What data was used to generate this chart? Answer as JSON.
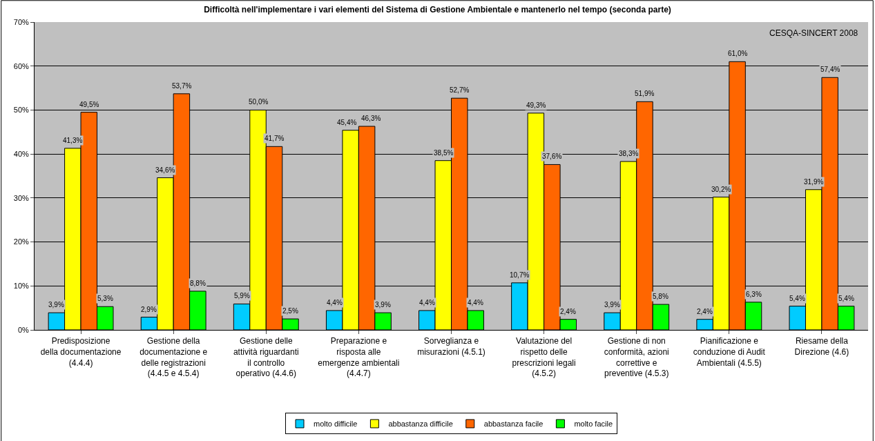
{
  "chart_data": {
    "type": "bar",
    "title": "Difficoltà nell'implementare i vari elementi del Sistema di Gestione Ambientale e mantenerlo nel tempo (seconda parte)",
    "categories": [
      "Predisposizione della documentazione (4.4.4)",
      "Gestione della documentazione e delle registrazioni (4.4.5 e 4.5.4)",
      "Gestione delle attività riguardanti il controllo operativo (4.4.6)",
      "Preparazione e risposta alle emergenze ambientali (4.4.7)",
      "Sorveglianza e misurazioni (4.5.1)",
      "Valutazione del rispetto delle prescrizioni legali (4.5.2)",
      "Gestione di non conformità, azioni correttive e preventive (4.5.3)",
      "Pianificazione e conduzione di Audit Ambientali (4.5.5)",
      "Riesame della Direzione (4.6)"
    ],
    "series": [
      {
        "name": "molto difficile",
        "color": "#00ccff",
        "values": [
          3.9,
          2.9,
          5.9,
          4.4,
          4.4,
          10.7,
          3.9,
          2.4,
          5.4
        ],
        "value_labels": [
          "3,9%",
          "2,9%",
          "5,9%",
          "4,4%",
          "4,4%",
          "10,7%",
          "3,9%",
          "2,4%",
          "5,4%"
        ]
      },
      {
        "name": "abbastanza difficile",
        "color": "#ffff00",
        "values": [
          41.3,
          34.6,
          50.0,
          45.4,
          38.5,
          49.3,
          38.3,
          30.2,
          31.9
        ],
        "value_labels": [
          "41,3%",
          "34,6%",
          "50,0%",
          "45,4%",
          "38,5%",
          "49,3%",
          "38,3%",
          "30,2%",
          "31,9%"
        ]
      },
      {
        "name": "abbastanza facile",
        "color": "#ff6600",
        "values": [
          49.5,
          53.7,
          41.7,
          46.3,
          52.7,
          37.6,
          51.9,
          61.0,
          57.4
        ],
        "value_labels": [
          "49,5%",
          "53,7%",
          "41,7%",
          "46,3%",
          "52,7%",
          "37,6%",
          "51,9%",
          "61,0%",
          "57,4%"
        ]
      },
      {
        "name": "molto facile",
        "color": "#00ff00",
        "values": [
          5.3,
          8.8,
          2.5,
          3.9,
          4.4,
          2.4,
          5.8,
          6.3,
          5.4
        ],
        "value_labels": [
          "5,3%",
          "8,8%",
          "2,5%",
          "3,9%",
          "4,4%",
          "2,4%",
          "5,8%",
          "6,3%",
          "5,4%"
        ]
      }
    ],
    "ylim": [
      0,
      70
    ],
    "yticks": [
      {
        "value": 0,
        "label": "0%"
      },
      {
        "value": 10,
        "label": "10%"
      },
      {
        "value": 20,
        "label": "20%"
      },
      {
        "value": 30,
        "label": "30%"
      },
      {
        "value": 40,
        "label": "40%"
      },
      {
        "value": 50,
        "label": "50%"
      },
      {
        "value": 60,
        "label": "60%"
      },
      {
        "value": 70,
        "label": "70%"
      }
    ],
    "grid": "y",
    "legend": "bottom",
    "annotations": [
      "CESQA-SINCERT 2008"
    ]
  }
}
